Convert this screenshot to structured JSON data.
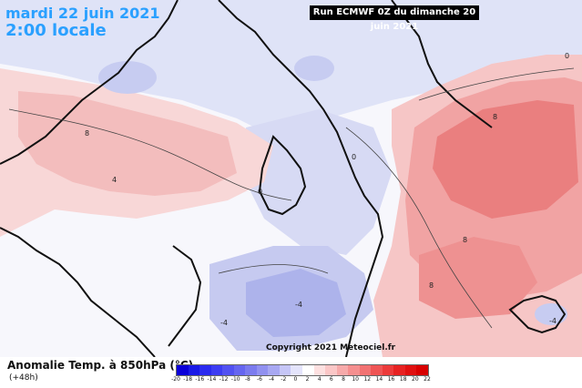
{
  "header": {
    "date": "mardi 22 juin 2021",
    "time": "2:00 locale",
    "run": "Run ECMWF 0Z du dimanche 20 juin 2021"
  },
  "footer": {
    "legend_title": "Anomalie Temp. à 850hPa (°C)",
    "lead": "(+48h)",
    "copyright": "Copyright 2021 Meteociel.fr"
  },
  "scale": {
    "labels": [
      "-20",
      "-18",
      "-16",
      "-14",
      "-12",
      "-10",
      "-8",
      "-6",
      "-4",
      "-2",
      "0",
      "2",
      "4",
      "6",
      "8",
      "10",
      "12",
      "14",
      "16",
      "18",
      "20",
      "22"
    ],
    "colors": [
      "#0b00d8",
      "#1a1ae6",
      "#2b2bef",
      "#3d3df3",
      "#5252f2",
      "#6666f0",
      "#7b7bee",
      "#9191f0",
      "#a8a8f2",
      "#c6c6f7",
      "#e4e4fb",
      "#ffffff",
      "#fde0e0",
      "#fbc7c7",
      "#f7aaaa",
      "#f58f8f",
      "#f27272",
      "#ef5555",
      "#ec3b3b",
      "#e72222",
      "#e01010",
      "#d80000"
    ]
  },
  "contour_labels": [
    "0",
    "4",
    "8",
    "-4"
  ]
}
